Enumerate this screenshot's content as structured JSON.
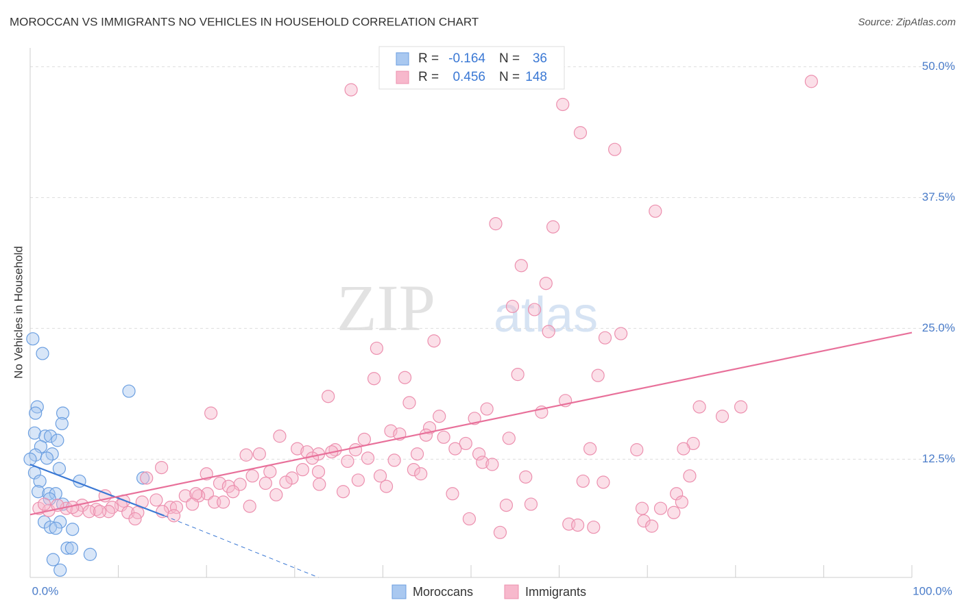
{
  "chart_data": {
    "type": "scatter",
    "title": "MOROCCAN VS IMMIGRANTS NO VEHICLES IN HOUSEHOLD CORRELATION CHART",
    "source": "Source: ZipAtlas.com",
    "ylabel": "No Vehicles in Household",
    "watermark": [
      "ZIP",
      "atlas"
    ],
    "stat_labels": {
      "r": "R =",
      "n": "N ="
    },
    "xlim": [
      0,
      100
    ],
    "ylim": [
      1.2,
      51.8
    ],
    "xticks": [
      {
        "value": 0,
        "label": "0.0%"
      },
      {
        "value": 100,
        "label": "100.0%"
      }
    ],
    "xminor_ticks": [
      10,
      20,
      30,
      40,
      50,
      60,
      70,
      80,
      90
    ],
    "yticks": [
      {
        "value": 12.5,
        "label": "12.5%"
      },
      {
        "value": 25,
        "label": "25.0%"
      },
      {
        "value": 37.5,
        "label": "37.5%"
      },
      {
        "value": 50,
        "label": "50.0%"
      }
    ],
    "grid": true,
    "series": [
      {
        "name": "Moroccans",
        "color": "#a9c8f0",
        "edge": "#6a9ee0",
        "line_color": "#3a78d4",
        "r": -0.164,
        "n": 36,
        "x": [
          0.3,
          1.4,
          0.8,
          0.6,
          3.7,
          3.6,
          0.5,
          1.7,
          2.3,
          3.1,
          1.2,
          2.5,
          0.6,
          1.9,
          3.3,
          0.5,
          5.6,
          1.1,
          11.2,
          12.8,
          0.9,
          2.1,
          2.9,
          2.2,
          3.7,
          1.6,
          3.4,
          2.3,
          2.9,
          4.8,
          4.2,
          4.7,
          2.6,
          6.8,
          3.4,
          0
        ],
        "values": [
          24.0,
          22.6,
          17.5,
          16.9,
          16.9,
          15.9,
          15.0,
          14.7,
          14.7,
          14.3,
          13.7,
          13.0,
          12.9,
          12.6,
          11.6,
          11.2,
          10.4,
          10.4,
          19.0,
          10.7,
          9.4,
          9.2,
          9.2,
          8.7,
          8.2,
          6.5,
          6.5,
          6.0,
          5.9,
          5.8,
          4.0,
          4.0,
          2.9,
          3.4,
          1.9,
          12.5
        ],
        "trend": {
          "x": [
            0,
            15.2
          ],
          "values": [
            12.0,
            7.1
          ],
          "extension_x": [
            15.2,
            32.7
          ],
          "extension_values": [
            7.1,
            1.2
          ]
        }
      },
      {
        "name": "Immigrants",
        "color": "#f7b8cc",
        "edge": "#ec8fae",
        "line_color": "#e8709a",
        "r": 0.456,
        "n": 148,
        "x": [
          36.4,
          88.6,
          60.4,
          62.4,
          66.3,
          70.9,
          52.8,
          59.3,
          55.7,
          58.5,
          54.7,
          57.2,
          58.8,
          67.0,
          65.2,
          45.8,
          39.3,
          55.3,
          64.4,
          42.5,
          39.0,
          33.8,
          60.7,
          43.0,
          51.8,
          80.6,
          75.9,
          20.5,
          58.0,
          78.5,
          50.4,
          46.4,
          45.3,
          40.9,
          41.9,
          44.9,
          28.3,
          46.9,
          37.9,
          54.3,
          75.2,
          49.4,
          74.1,
          30.3,
          63.5,
          48.2,
          36.9,
          31.4,
          34.6,
          32.7,
          68.8,
          34.2,
          32.0,
          43.9,
          26.0,
          24.5,
          50.9,
          41.3,
          38.3,
          51.3,
          36.0,
          52.4,
          14.9,
          32.7,
          30.9,
          43.5,
          27.2,
          20.0,
          44.3,
          39.7,
          74.8,
          56.2,
          25.2,
          13.2,
          29.7,
          21.5,
          37.2,
          62.7,
          65.0,
          26.7,
          29.0,
          23.8,
          32.8,
          40.4,
          22.5,
          23.0,
          35.5,
          20.1,
          17.6,
          19.1,
          18.8,
          47.9,
          27.9,
          73.3,
          8.5,
          14.3,
          10.6,
          12.7,
          20.9,
          21.9,
          18.4,
          73.9,
          10.3,
          54.0,
          56.8,
          5.9,
          9.3,
          24.9,
          15.9,
          16.6,
          4.1,
          7.5,
          69.4,
          71.5,
          1.0,
          6.7,
          2.1,
          11.1,
          8.9,
          12.2,
          7.9,
          5.3,
          15.0,
          73.0,
          16.3,
          3.1,
          11.9,
          49.8,
          69.6,
          61.1,
          62.1,
          63.9,
          70.5,
          53.3,
          1.6,
          4.8
        ],
        "values": [
          47.8,
          48.6,
          46.4,
          43.7,
          42.1,
          36.2,
          35.0,
          34.7,
          31.0,
          29.3,
          27.1,
          26.8,
          24.7,
          24.5,
          24.1,
          23.8,
          23.1,
          20.6,
          20.5,
          20.3,
          20.2,
          18.5,
          18.1,
          17.9,
          17.3,
          17.5,
          17.5,
          16.9,
          17.0,
          16.6,
          16.4,
          16.6,
          15.5,
          15.2,
          14.9,
          14.8,
          14.7,
          14.6,
          14.4,
          14.5,
          14.0,
          14.0,
          13.5,
          13.5,
          13.5,
          13.5,
          13.4,
          13.2,
          13.4,
          13.0,
          13.4,
          13.2,
          12.6,
          13.0,
          13.0,
          12.9,
          13.0,
          12.4,
          12.6,
          12.2,
          12.3,
          12.0,
          11.7,
          11.3,
          11.5,
          11.5,
          11.3,
          11.1,
          11.1,
          10.9,
          10.9,
          10.8,
          10.9,
          10.7,
          10.7,
          10.2,
          10.5,
          10.4,
          10.3,
          10.2,
          10.3,
          10.1,
          10.1,
          9.9,
          9.9,
          9.4,
          9.4,
          9.2,
          9.0,
          9.0,
          9.2,
          9.2,
          9.1,
          9.2,
          9.0,
          8.6,
          8.5,
          8.4,
          8.4,
          8.4,
          8.2,
          8.4,
          8.1,
          8.1,
          8.2,
          8.1,
          7.9,
          8.0,
          7.9,
          7.9,
          7.8,
          7.7,
          7.8,
          7.8,
          7.8,
          7.5,
          7.6,
          7.4,
          7.5,
          7.4,
          7.5,
          7.6,
          7.5,
          7.4,
          7.1,
          8.1,
          6.8,
          6.8,
          6.6,
          6.3,
          6.2,
          6.0,
          6.1,
          5.5,
          8.2,
          7.9
        ],
        "trend": {
          "x": [
            0,
            100
          ],
          "values": [
            7.2,
            24.6
          ]
        }
      }
    ]
  }
}
